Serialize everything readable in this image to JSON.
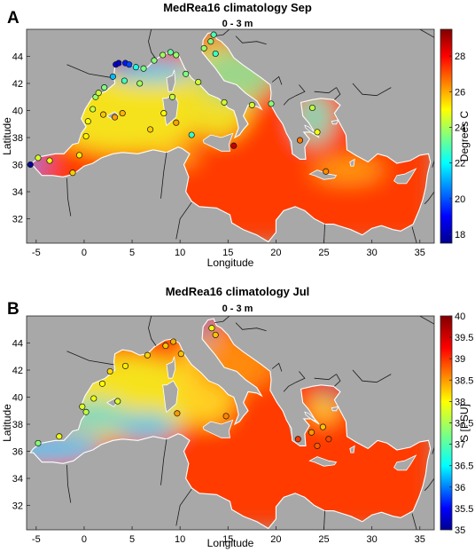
{
  "panels": [
    {
      "letter": "A",
      "title": "MedRea16 climatology Sep",
      "depth": "0 - 3 m",
      "xlabel": "Longitude",
      "ylabel": "Latitude",
      "colorbar": {
        "label": "Degrees C",
        "min": 17.5,
        "max": 29.5,
        "ticks": [
          18,
          20,
          22,
          24,
          26,
          28
        ],
        "tick_labels": [
          "18",
          "20",
          "22",
          "24",
          "26",
          "28"
        ]
      },
      "colors": {
        "sea_base": "#ff3a00",
        "west": "#f6e21a",
        "north_cold": "#56c4e6"
      },
      "observation_points": [
        [
          -5.6,
          36.0,
          17.8
        ],
        [
          -4.8,
          36.5,
          24.5
        ],
        [
          -3.6,
          36.3,
          24.8
        ],
        [
          -1.2,
          35.4,
          25.6
        ],
        [
          -0.5,
          36.7,
          25.2
        ],
        [
          0.2,
          38.1,
          25.1
        ],
        [
          0.4,
          39.2,
          24.9
        ],
        [
          0.9,
          40.1,
          24.3
        ],
        [
          1.2,
          41.0,
          23.8
        ],
        [
          1.5,
          41.3,
          24.4
        ],
        [
          2.1,
          41.7,
          23.5
        ],
        [
          3.0,
          42.5,
          21.2
        ],
        [
          3.3,
          43.4,
          18.5
        ],
        [
          3.6,
          43.5,
          18.2
        ],
        [
          4.3,
          43.5,
          19.3
        ],
        [
          4.7,
          43.4,
          19.8
        ],
        [
          5.4,
          43.2,
          22.3
        ],
        [
          6.2,
          43.1,
          23.4
        ],
        [
          7.3,
          43.7,
          23.6
        ],
        [
          8.2,
          44.1,
          23.9
        ],
        [
          9.0,
          44.3,
          23.2
        ],
        [
          9.6,
          44.1,
          23.8
        ],
        [
          5.8,
          42.0,
          23.9
        ],
        [
          4.2,
          42.2,
          22.8
        ],
        [
          2.0,
          39.7,
          25.7
        ],
        [
          3.2,
          39.5,
          26.1
        ],
        [
          4.0,
          39.8,
          25.9
        ],
        [
          6.9,
          38.6,
          25.6
        ],
        [
          8.3,
          39.8,
          25.0
        ],
        [
          9.6,
          39.1,
          26.1
        ],
        [
          9.2,
          41.0,
          24.3
        ],
        [
          10.6,
          42.7,
          23.5
        ],
        [
          11.9,
          42.1,
          24.4
        ],
        [
          12.5,
          44.6,
          23.8
        ],
        [
          13.5,
          45.6,
          22.9
        ],
        [
          13.7,
          44.2,
          22.7
        ],
        [
          13.2,
          45.1,
          23.5
        ],
        [
          14.6,
          40.6,
          24.4
        ],
        [
          11.2,
          38.2,
          22.6
        ],
        [
          15.6,
          37.4,
          28.7
        ],
        [
          17.5,
          40.4,
          24.5
        ],
        [
          19.5,
          40.5,
          23.6
        ],
        [
          22.5,
          37.8,
          26.6
        ],
        [
          24.3,
          38.4,
          24.9
        ],
        [
          23.8,
          40.2,
          24.2
        ],
        [
          25.2,
          35.5,
          26.4
        ]
      ]
    },
    {
      "letter": "B",
      "title": "MedRea16 climatology Jul",
      "depth": "0 - 3 m",
      "xlabel": "Longitude",
      "ylabel": "Latitude",
      "colorbar": {
        "label": "S [PSU]",
        "min": 35,
        "max": 40,
        "ticks": [
          35,
          35.5,
          36,
          36.5,
          37,
          37.5,
          38,
          38.5,
          39,
          39.5,
          40
        ],
        "tick_labels": [
          "35",
          "35.5",
          "36",
          "36.5",
          "37",
          "37.5",
          "38",
          "38.5",
          "39",
          "39.5",
          "40"
        ]
      },
      "colors": {
        "sea_base": "#ff3a00",
        "west": "#f6e21a",
        "alboran": "#3fc6ee",
        "fresh": "#0a0a96"
      },
      "observation_points": [
        [
          -4.8,
          36.6,
          37.3
        ],
        [
          -2.6,
          37.1,
          37.9
        ],
        [
          -0.2,
          39.3,
          37.8
        ],
        [
          0.2,
          38.9,
          37.6
        ],
        [
          1.0,
          39.9,
          37.9
        ],
        [
          1.9,
          41.0,
          38.0
        ],
        [
          2.7,
          41.9,
          38.2
        ],
        [
          3.5,
          39.7,
          37.8
        ],
        [
          4.3,
          42.3,
          38.1
        ],
        [
          6.6,
          43.1,
          38.2
        ],
        [
          8.5,
          43.8,
          38.3
        ],
        [
          9.3,
          44.1,
          38.4
        ],
        [
          10.1,
          43.2,
          38.3
        ],
        [
          13.3,
          45.1,
          37.9
        ],
        [
          13.7,
          44.6,
          38.3
        ],
        [
          14.8,
          38.6,
          38.6
        ],
        [
          9.7,
          38.8,
          38.5
        ],
        [
          22.3,
          36.9,
          39.0
        ],
        [
          23.7,
          37.4,
          38.5
        ],
        [
          24.3,
          36.4,
          38.8
        ],
        [
          25.5,
          36.9,
          38.9
        ],
        [
          24.9,
          37.8,
          38.3
        ]
      ]
    }
  ],
  "axes": {
    "x_ticks": [
      -5,
      0,
      5,
      10,
      15,
      20,
      25,
      30,
      35
    ],
    "x_tick_labels": [
      "-5",
      "0",
      "5",
      "10",
      "15",
      "20",
      "25",
      "30",
      "35"
    ],
    "y_ticks": [
      32,
      34,
      36,
      38,
      40,
      42,
      44
    ],
    "y_tick_labels": [
      "32",
      "34",
      "36",
      "38",
      "40",
      "42",
      "44"
    ],
    "xlim": [
      -6,
      36.5
    ],
    "ylim": [
      30.2,
      46
    ]
  }
}
